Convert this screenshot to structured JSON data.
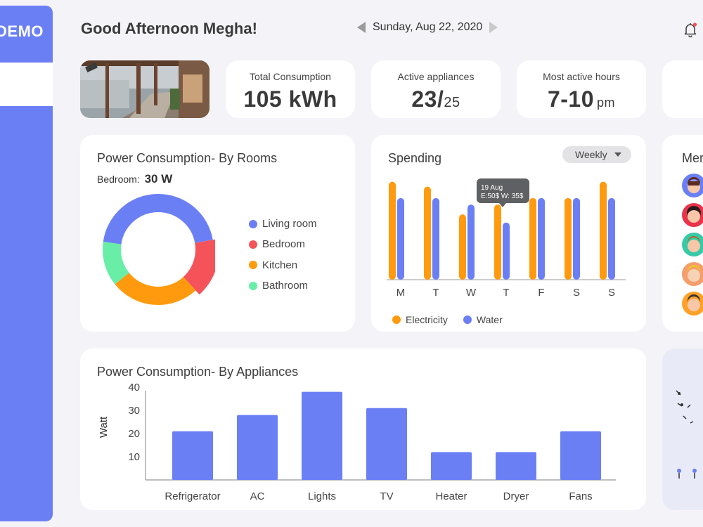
{
  "brand": "DEMO",
  "header": {
    "greeting": "Good Afternoon Megha!",
    "date": "Sunday, Aug 22, 2020"
  },
  "stats": [
    {
      "label": "Total Consumption",
      "value": "105 kWh"
    },
    {
      "label": "Active appliances",
      "value": "23/",
      "sub": "25"
    },
    {
      "label": "Most active hours",
      "value": "7-10",
      "sub": "pm"
    }
  ],
  "rooms": {
    "title": "Power Consumption- By Rooms",
    "selected_label": "Bedroom:",
    "selected_value": "30 W",
    "legend": [
      {
        "name": "Living room",
        "color": "#6b7ff5"
      },
      {
        "name": "Bedroom",
        "color": "#f4535a"
      },
      {
        "name": "Kitchen",
        "color": "#ff9a0e"
      },
      {
        "name": "Bathroom",
        "color": "#68eea7"
      }
    ]
  },
  "spending": {
    "title": "Spending",
    "period": "Weekly",
    "tooltip": {
      "line1": "19 Aug",
      "line2": "E:50$ W: 35$"
    },
    "legend": [
      {
        "name": "Electricity",
        "color": "#ff9a0e"
      },
      {
        "name": "Water",
        "color": "#6b7ff5"
      }
    ]
  },
  "members": {
    "title": "Mer"
  },
  "appliances": {
    "title": "Power Consumption- By Appliances",
    "ylabel": "Watt"
  },
  "chart_data": [
    {
      "type": "pie",
      "title": "Power Consumption- By Rooms",
      "labels": [
        "Living room",
        "Bedroom",
        "Kitchen",
        "Bathroom"
      ],
      "values": [
        45,
        16,
        26,
        13
      ],
      "colors": [
        "#6b7ff5",
        "#f4535a",
        "#ff9a0e",
        "#68eea7"
      ]
    },
    {
      "type": "bar",
      "title": "Spending",
      "categories": [
        "M",
        "T",
        "W",
        "T",
        "F",
        "S",
        "S"
      ],
      "series": [
        {
          "name": "Electricity",
          "color": "#ff9a0e",
          "values": [
            60,
            57,
            40,
            46,
            50,
            50,
            60
          ]
        },
        {
          "name": "Water",
          "color": "#6b7ff5",
          "values": [
            50,
            50,
            46,
            35,
            50,
            50,
            50
          ]
        }
      ],
      "ylim": [
        0,
        65
      ],
      "grid": false
    },
    {
      "type": "bar",
      "title": "Power Consumption- By Appliances",
      "ylabel": "Watt",
      "categories": [
        "Refrigerator",
        "AC",
        "Lights",
        "TV",
        "Heater",
        "Dryer",
        "Fans"
      ],
      "values": [
        21,
        28,
        38,
        31,
        12,
        12,
        21
      ],
      "yticks": [
        10,
        20,
        30,
        40
      ],
      "ylim": [
        0,
        45
      ],
      "color": "#6b7ff5",
      "grid": false
    }
  ]
}
